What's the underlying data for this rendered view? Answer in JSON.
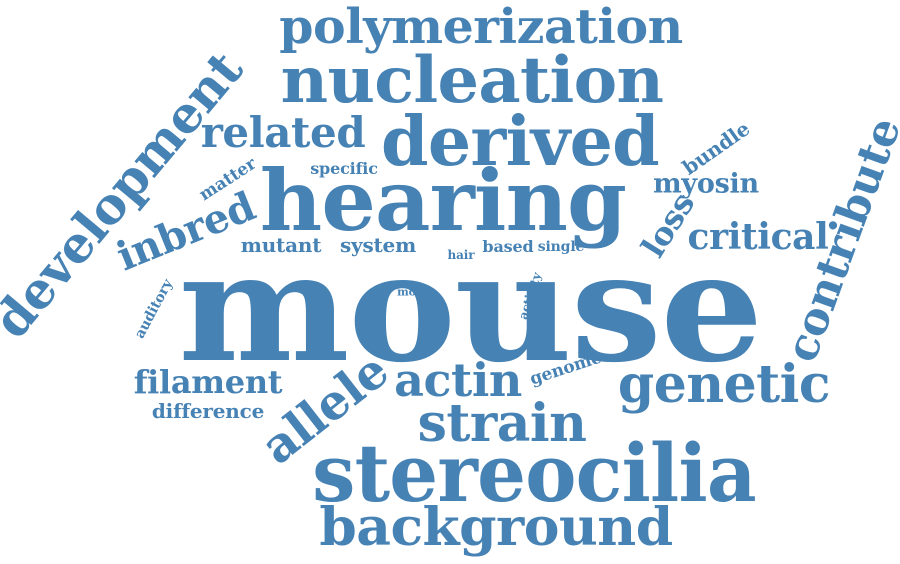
{
  "word_cloud": {
    "color": "#4682B4",
    "background": "#ffffff",
    "words": [
      {
        "text": "mouse"
      },
      {
        "text": "hearing"
      },
      {
        "text": "stereocilia"
      },
      {
        "text": "derived"
      },
      {
        "text": "nucleation"
      },
      {
        "text": "background"
      },
      {
        "text": "development"
      },
      {
        "text": "polymerization"
      },
      {
        "text": "genetic"
      },
      {
        "text": "strain"
      },
      {
        "text": "contribute"
      },
      {
        "text": "allele"
      },
      {
        "text": "actin"
      },
      {
        "text": "related"
      },
      {
        "text": "inbred"
      },
      {
        "text": "critical"
      },
      {
        "text": "filament"
      },
      {
        "text": "loss"
      },
      {
        "text": "myosin"
      },
      {
        "text": "mutant"
      },
      {
        "text": "system"
      },
      {
        "text": "difference"
      },
      {
        "text": "bundle"
      },
      {
        "text": "matter"
      },
      {
        "text": "genome"
      },
      {
        "text": "specific"
      },
      {
        "text": "auditory"
      },
      {
        "text": "based"
      },
      {
        "text": "single"
      },
      {
        "text": "hair"
      },
      {
        "text": "activity"
      },
      {
        "text": "most"
      }
    ]
  }
}
